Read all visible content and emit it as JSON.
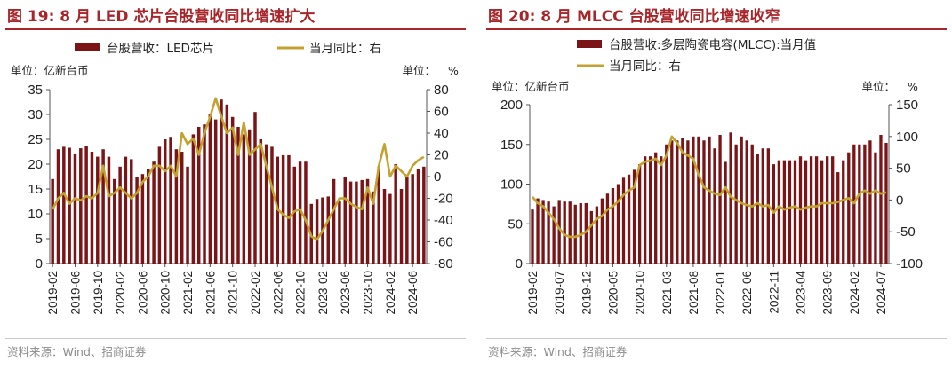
{
  "figures": [
    {
      "title": "图 19:  8 月 LED 芯片台股营收同比增速扩大",
      "source": "资料来源：Wind、招商证券"
    },
    {
      "title": "图 20:  8 月 MLCC 台股营收同比增速收窄",
      "source": "资料来源：Wind、招商证券"
    }
  ],
  "colors": {
    "bar": "#7b1417",
    "line": "#c4a231",
    "title": "#a8262a",
    "negative_tick": "#e01b1b"
  },
  "chart_data": [
    {
      "type": "bar+line",
      "title": "8 月 LED 芯片台股营收同比增速扩大",
      "left_unit": "单位：亿新台币",
      "right_unit": "单位：%",
      "legend": [
        {
          "name": "台股营收：LED芯片",
          "kind": "bar"
        },
        {
          "name": "当月同比：右",
          "kind": "line"
        }
      ],
      "left_axis": {
        "min": 0,
        "max": 35,
        "step": 5,
        "ticks": [
          "0",
          "5",
          "10",
          "15",
          "20",
          "25",
          "30",
          "35"
        ]
      },
      "right_axis": {
        "min": -80,
        "max": 80,
        "step": 20,
        "ticks": [
          "-80",
          "-60",
          "-40",
          "-20",
          "0",
          "20",
          "40",
          "60",
          "80"
        ]
      },
      "x_tick_labels": [
        "2019-02",
        "2019-06",
        "2019-10",
        "2020-02",
        "2020-06",
        "2020-10",
        "2021-02",
        "2021-06",
        "2021-10",
        "2022-02",
        "2022-06",
        "2022-10",
        "2023-02",
        "2023-06",
        "2023-10",
        "2024-02",
        "2024-06"
      ],
      "categories": [
        "2019-02",
        "2019-03",
        "2019-04",
        "2019-05",
        "2019-06",
        "2019-07",
        "2019-08",
        "2019-09",
        "2019-10",
        "2019-11",
        "2019-12",
        "2020-01",
        "2020-02",
        "2020-03",
        "2020-04",
        "2020-05",
        "2020-06",
        "2020-07",
        "2020-08",
        "2020-09",
        "2020-10",
        "2020-11",
        "2020-12",
        "2021-01",
        "2021-02",
        "2021-03",
        "2021-04",
        "2021-05",
        "2021-06",
        "2021-07",
        "2021-08",
        "2021-09",
        "2021-10",
        "2021-11",
        "2021-12",
        "2022-01",
        "2022-02",
        "2022-03",
        "2022-04",
        "2022-05",
        "2022-06",
        "2022-07",
        "2022-08",
        "2022-09",
        "2022-10",
        "2022-11",
        "2022-12",
        "2023-01",
        "2023-02",
        "2023-03",
        "2023-04",
        "2023-05",
        "2023-06",
        "2023-07",
        "2023-08",
        "2023-09",
        "2023-10",
        "2023-11",
        "2023-12",
        "2024-01",
        "2024-02",
        "2024-03",
        "2024-04",
        "2024-05",
        "2024-06",
        "2024-07",
        "2024-08"
      ],
      "series": [
        {
          "name": "台股营收：LED芯片",
          "axis": "left",
          "kind": "bar",
          "values": [
            17,
            23,
            23.5,
            23.3,
            22,
            23.2,
            23.6,
            22.5,
            21.5,
            23,
            21.5,
            17,
            19.5,
            21.5,
            21,
            17.5,
            18,
            19,
            20.5,
            23.5,
            25,
            25.5,
            23,
            22.5,
            19.5,
            26,
            27.5,
            28,
            30,
            29,
            33,
            32,
            29.5,
            27.5,
            26,
            27,
            30.5,
            25,
            24,
            23.5,
            21.5,
            21.8,
            21.8,
            19.5,
            20.5,
            20.5,
            12,
            13,
            13.3,
            13.5,
            17,
            12.5,
            17.5,
            16.5,
            16.5,
            16.8,
            17,
            14.5,
            19.5,
            15,
            14,
            20,
            15,
            17.5,
            18,
            19,
            19.5
          ]
        },
        {
          "name": "当月同比：右",
          "axis": "right",
          "kind": "line",
          "values": [
            -30,
            -20,
            -15,
            -25,
            -20,
            -22,
            -18,
            -20,
            -15,
            10,
            -18,
            -15,
            -10,
            -15,
            -20,
            -15,
            -5,
            0,
            10,
            10,
            5,
            10,
            0,
            40,
            30,
            35,
            20,
            40,
            55,
            72,
            55,
            40,
            45,
            20,
            50,
            20,
            25,
            30,
            10,
            -10,
            -30,
            -35,
            -38,
            -32,
            -30,
            -40,
            -55,
            -58,
            -50,
            -40,
            -30,
            -20,
            -20,
            -25,
            -28,
            -30,
            -10,
            -25,
            10,
            30,
            0,
            10,
            5,
            0,
            10,
            15,
            18
          ]
        }
      ]
    },
    {
      "type": "bar+line",
      "title": "8 月 MLCC 台股营收同比增速收窄",
      "left_unit": "单位：亿新台币",
      "right_unit": "单位：%",
      "legend": [
        {
          "name": "台股营收:多层陶瓷电容(MLCC):当月值",
          "kind": "bar"
        },
        {
          "name": "当月同比：右",
          "kind": "line"
        }
      ],
      "left_axis": {
        "min": 0,
        "max": 200,
        "step": 50,
        "ticks": [
          "0",
          "50",
          "100",
          "150",
          "200"
        ]
      },
      "right_axis": {
        "min": -100,
        "max": 150,
        "step": 50,
        "ticks": [
          "-100",
          "-50",
          "0",
          "50",
          "100",
          "150"
        ]
      },
      "x_tick_labels": [
        "2019-02",
        "2019-07",
        "2019-12",
        "2020-05",
        "2020-10",
        "2021-03",
        "2021-08",
        "2022-01",
        "2022-06",
        "2022-11",
        "2023-04",
        "2023-09",
        "2024-02",
        "2024-07"
      ],
      "categories": [
        "2019-02",
        "2019-03",
        "2019-04",
        "2019-05",
        "2019-06",
        "2019-07",
        "2019-08",
        "2019-09",
        "2019-10",
        "2019-11",
        "2019-12",
        "2020-01",
        "2020-02",
        "2020-03",
        "2020-04",
        "2020-05",
        "2020-06",
        "2020-07",
        "2020-08",
        "2020-09",
        "2020-10",
        "2020-11",
        "2020-12",
        "2021-01",
        "2021-02",
        "2021-03",
        "2021-04",
        "2021-05",
        "2021-06",
        "2021-07",
        "2021-08",
        "2021-09",
        "2021-10",
        "2021-11",
        "2021-12",
        "2022-01",
        "2022-02",
        "2022-03",
        "2022-04",
        "2022-05",
        "2022-06",
        "2022-07",
        "2022-08",
        "2022-09",
        "2022-10",
        "2022-11",
        "2022-12",
        "2023-01",
        "2023-02",
        "2023-03",
        "2023-04",
        "2023-05",
        "2023-06",
        "2023-07",
        "2023-08",
        "2023-09",
        "2023-10",
        "2023-11",
        "2023-12",
        "2024-01",
        "2024-02",
        "2024-03",
        "2024-04",
        "2024-05",
        "2024-06",
        "2024-07",
        "2024-08"
      ],
      "series": [
        {
          "name": "台股营收:多层陶瓷电容(MLCC):当月值",
          "axis": "left",
          "kind": "bar",
          "values": [
            68,
            82,
            80,
            78,
            72,
            80,
            78,
            78,
            74,
            76,
            76,
            66,
            72,
            82,
            88,
            95,
            100,
            108,
            112,
            118,
            125,
            135,
            135,
            140,
            135,
            150,
            155,
            155,
            158,
            155,
            160,
            160,
            155,
            160,
            145,
            162,
            128,
            165,
            150,
            160,
            155,
            150,
            138,
            145,
            145,
            125,
            130,
            130,
            130,
            130,
            135,
            130,
            135,
            135,
            130,
            135,
            135,
            115,
            130,
            140,
            150,
            150,
            150,
            155,
            140,
            162,
            152
          ]
        },
        {
          "name": "当月同比：右",
          "axis": "right",
          "kind": "line",
          "values": [
            5,
            -5,
            -10,
            -20,
            -30,
            -45,
            -55,
            -58,
            -58,
            -55,
            -50,
            -40,
            -30,
            -25,
            -15,
            -10,
            -2,
            8,
            15,
            20,
            55,
            60,
            62,
            65,
            55,
            70,
            100,
            90,
            75,
            70,
            65,
            40,
            20,
            15,
            10,
            8,
            20,
            5,
            0,
            -5,
            -8,
            -10,
            -5,
            -10,
            -8,
            -20,
            -10,
            -15,
            -12,
            -10,
            -15,
            -12,
            -10,
            -10,
            -5,
            -5,
            -5,
            -3,
            0,
            3,
            -5,
            10,
            15,
            10,
            15,
            10,
            12
          ]
        }
      ]
    }
  ]
}
